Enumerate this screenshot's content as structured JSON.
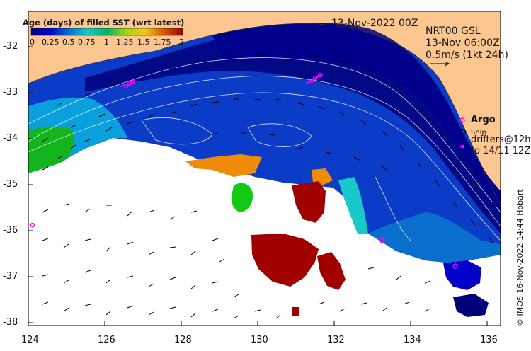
{
  "map": {
    "date_label": "13-Nov-2022 00Z",
    "product_lines": [
      "NRT00 GSL",
      "13-Nov 06:00Z",
      "0.5m/s (1kt 24h)"
    ],
    "x_ticks": [
      "124",
      "126",
      "128",
      "130",
      "132",
      "134",
      "136"
    ],
    "y_ticks": [
      "-32",
      "-33",
      "-34",
      "-35",
      "-36",
      "-37",
      "-38"
    ],
    "credit": "© IMOS 16-Nov-2022 14:44 Hobart"
  },
  "colorbar": {
    "title": "Age (days) of filled SST (wrt latest)",
    "ticks": [
      "0",
      "0.25",
      "0.5",
      "0.75",
      "1",
      "1.25",
      "1.5",
      "1.75",
      "2"
    ],
    "colors": [
      "#00007a",
      "#0000c8",
      "#0a3cc8",
      "#0a6ecc",
      "#0aa0dd",
      "#19c8c8",
      "#00b464",
      "#14c814",
      "#9bd21e",
      "#f0c81e",
      "#ee8c0a",
      "#d25a0a",
      "#a00000"
    ]
  },
  "legend": {
    "argo_label": "Argo",
    "ship_label": "Ship",
    "drifter_line1": "drifters@12h",
    "drifter_line2": "to 14/11 12Z"
  },
  "colors": {
    "land": "#fbc68f",
    "argo": "#ff00ff",
    "ocean_nodata": "#ffffff",
    "old_data": "#a00000"
  }
}
